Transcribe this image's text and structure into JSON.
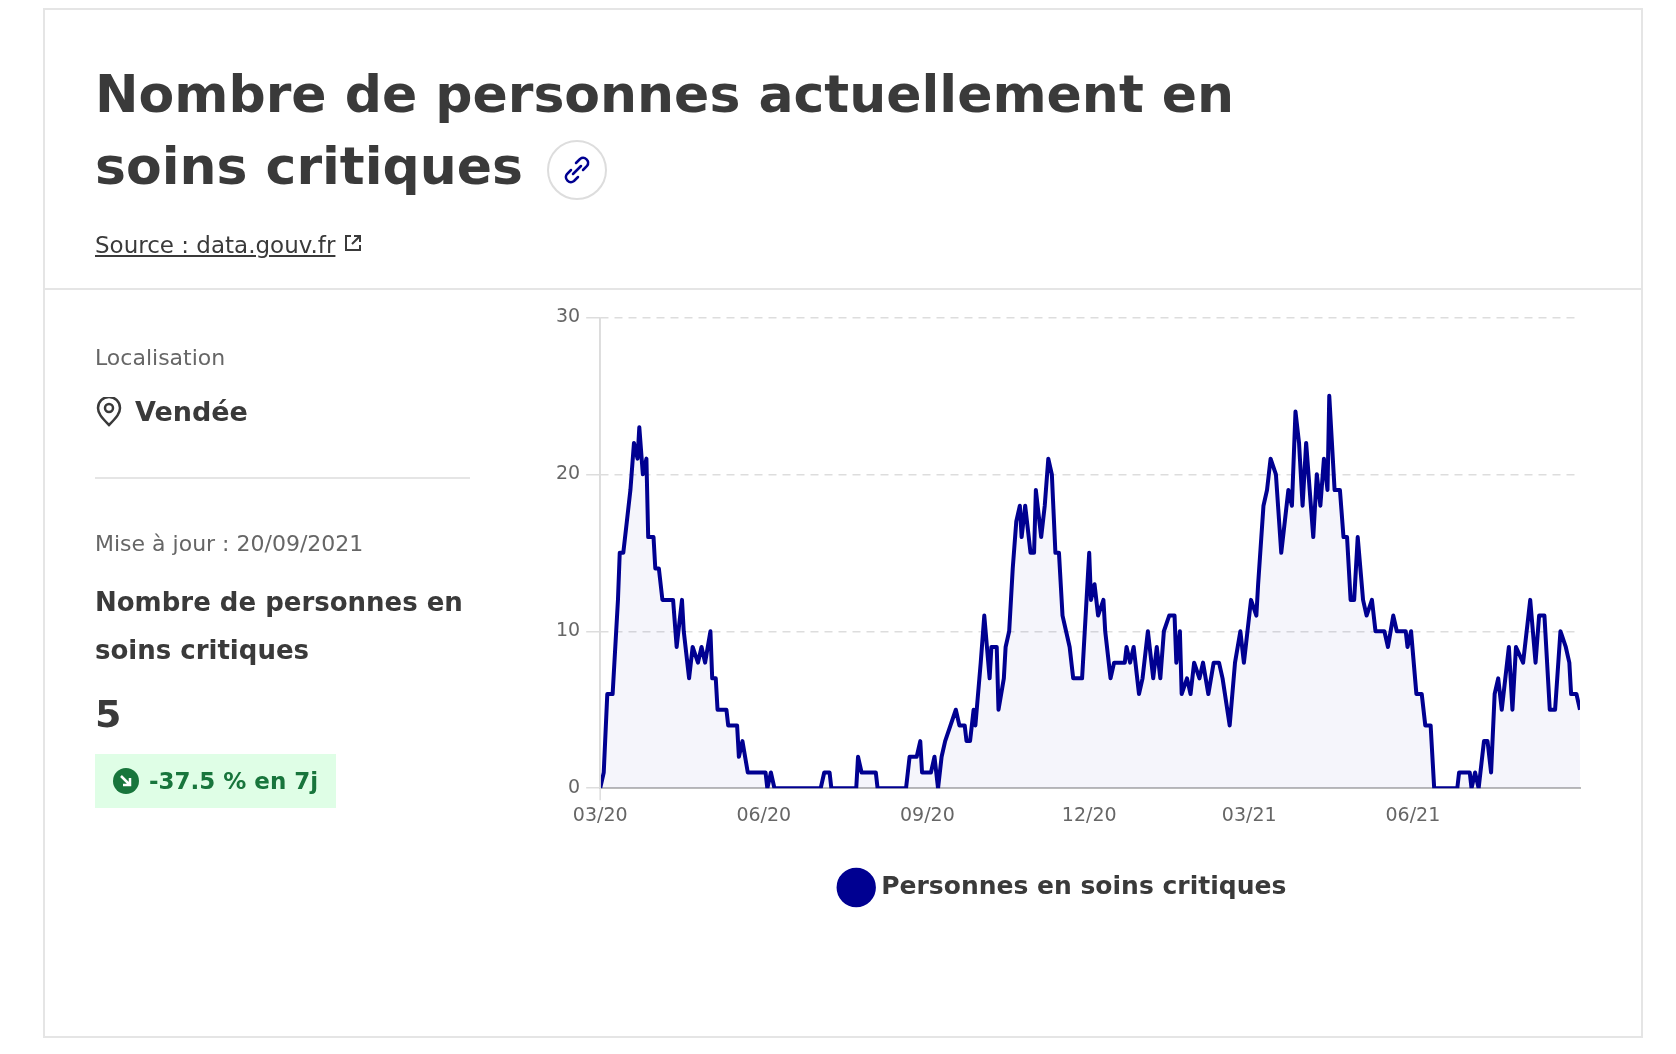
{
  "chart_data": {
    "type": "area",
    "title": "Nombre de personnes actuellement en soins critiques",
    "annotations": [
      "Source : data.gouv.fr",
      "Localisation",
      "Vendée",
      "Mise à jour : 20/09/2021",
      "Nombre de personnes en soins critiques",
      "5",
      "-37.5 % en 7j"
    ],
    "x": [
      "2020-03-18",
      "2020-03-20",
      "2020-03-22",
      "2020-03-25",
      "2020-03-28",
      "2020-03-29",
      "2020-03-31",
      "2020-04-02",
      "2020-04-04",
      "2020-04-06",
      "2020-04-08",
      "2020-04-09",
      "2020-04-11",
      "2020-04-13",
      "2020-04-14",
      "2020-04-17",
      "2020-04-18",
      "2020-04-20",
      "2020-04-22",
      "2020-04-28",
      "2020-04-30",
      "2020-05-03",
      "2020-05-04",
      "2020-05-07",
      "2020-05-09",
      "2020-05-12",
      "2020-05-14",
      "2020-05-16",
      "2020-05-19",
      "2020-05-20",
      "2020-05-22",
      "2020-05-23",
      "2020-05-28",
      "2020-05-29",
      "2020-06-03",
      "2020-06-04",
      "2020-06-06",
      "2020-06-09",
      "2020-06-19",
      "2020-06-20",
      "2020-06-22",
      "2020-06-24",
      "2020-07-20",
      "2020-07-22",
      "2020-07-25",
      "2020-07-26",
      "2020-08-09",
      "2020-08-10",
      "2020-08-12",
      "2020-08-20",
      "2020-08-21",
      "2020-09-06",
      "2020-09-08",
      "2020-09-12",
      "2020-09-14",
      "2020-09-15",
      "2020-09-20",
      "2020-09-22",
      "2020-09-24",
      "2020-09-26",
      "2020-09-28",
      "2020-10-01",
      "2020-10-04",
      "2020-10-06",
      "2020-10-09",
      "2020-10-10",
      "2020-10-12",
      "2020-10-14",
      "2020-10-15",
      "2020-10-18",
      "2020-10-20",
      "2020-10-23",
      "2020-10-24",
      "2020-10-27",
      "2020-10-28",
      "2020-10-31",
      "2020-11-01",
      "2020-11-03",
      "2020-11-05",
      "2020-11-07",
      "2020-11-09",
      "2020-11-10",
      "2020-11-12",
      "2020-11-15",
      "2020-11-17",
      "2020-11-18",
      "2020-11-21",
      "2020-11-23",
      "2020-11-25",
      "2020-11-27",
      "2020-11-29",
      "2020-12-01",
      "2020-12-03",
      "2020-12-05",
      "2020-12-07",
      "2020-12-09",
      "2020-12-14",
      "2020-12-18",
      "2020-12-19",
      "2020-12-21",
      "2020-12-23",
      "2020-12-26",
      "2020-12-27",
      "2020-12-30",
      "2021-01-01",
      "2021-01-07",
      "2021-01-08",
      "2021-01-10",
      "2021-01-12",
      "2021-01-15",
      "2021-01-17",
      "2021-01-20",
      "2021-01-23",
      "2021-01-25",
      "2021-01-27",
      "2021-01-29",
      "2021-02-01",
      "2021-02-04",
      "2021-02-05",
      "2021-02-07",
      "2021-02-08",
      "2021-02-11",
      "2021-02-13",
      "2021-02-15",
      "2021-02-18",
      "2021-02-20",
      "2021-02-23",
      "2021-02-26",
      "2021-03-01",
      "2021-03-03",
      "2021-03-07",
      "2021-03-10",
      "2021-03-13",
      "2021-03-15",
      "2021-03-19",
      "2021-03-22",
      "2021-03-23",
      "2021-03-26",
      "2021-03-28",
      "2021-03-30",
      "2021-04-02",
      "2021-04-05",
      "2021-04-07",
      "2021-04-09",
      "2021-04-11",
      "2021-04-13",
      "2021-04-15",
      "2021-04-17",
      "2021-04-19",
      "2021-04-21",
      "2021-04-23",
      "2021-04-25",
      "2021-04-27",
      "2021-04-29",
      "2021-05-01",
      "2021-05-02",
      "2021-05-05",
      "2021-05-08",
      "2021-05-10",
      "2021-05-12",
      "2021-05-14",
      "2021-05-16",
      "2021-05-18",
      "2021-05-21",
      "2021-05-23",
      "2021-05-26",
      "2021-05-28",
      "2021-06-02",
      "2021-06-04",
      "2021-06-07",
      "2021-06-09",
      "2021-06-14",
      "2021-06-15",
      "2021-06-17",
      "2021-06-20",
      "2021-06-23",
      "2021-06-25",
      "2021-06-28",
      "2021-06-30",
      "2021-07-13",
      "2021-07-14",
      "2021-07-20",
      "2021-07-21",
      "2021-07-23",
      "2021-07-25",
      "2021-07-28",
      "2021-07-30",
      "2021-08-01",
      "2021-08-03",
      "2021-08-05",
      "2021-08-07",
      "2021-08-11",
      "2021-08-13",
      "2021-08-15",
      "2021-08-19",
      "2021-08-23",
      "2021-08-26",
      "2021-08-28",
      "2021-08-31",
      "2021-09-03",
      "2021-09-06",
      "2021-09-09",
      "2021-09-12",
      "2021-09-14",
      "2021-09-15",
      "2021-09-18",
      "2021-09-20"
    ],
    "series": [
      {
        "name": "Personnes en soins critiques",
        "color": "#000091",
        "values": [
          0,
          1,
          6,
          6,
          12,
          15,
          15,
          17,
          19,
          22,
          21,
          23,
          20,
          21,
          16,
          16,
          14,
          14,
          12,
          12,
          9,
          12,
          10,
          7,
          9,
          8,
          9,
          8,
          10,
          7,
          7,
          5,
          5,
          4,
          4,
          2,
          3,
          1,
          1,
          0,
          1,
          0,
          0,
          1,
          1,
          0,
          0,
          2,
          1,
          1,
          0,
          0,
          2,
          2,
          3,
          1,
          1,
          2,
          0,
          2,
          3,
          4,
          5,
          4,
          4,
          3,
          3,
          5,
          4,
          8,
          11,
          7,
          9,
          9,
          5,
          7,
          9,
          10,
          14,
          17,
          18,
          16,
          18,
          15,
          15,
          19,
          16,
          18,
          21,
          20,
          15,
          15,
          11,
          10,
          9,
          7,
          7,
          15,
          12,
          13,
          11,
          12,
          10,
          7,
          8,
          8,
          9,
          8,
          9,
          6,
          7,
          10,
          7,
          9,
          7,
          10,
          11,
          11,
          8,
          10,
          6,
          7,
          6,
          8,
          7,
          8,
          6,
          8,
          8,
          7,
          4,
          8,
          10,
          8,
          12,
          11,
          13,
          18,
          19,
          21,
          20,
          15,
          17,
          19,
          18,
          24,
          22,
          18,
          22,
          19,
          16,
          20,
          18,
          21,
          19,
          25,
          19,
          19,
          16,
          16,
          12,
          12,
          16,
          12,
          11,
          12,
          10,
          10,
          9,
          11,
          10,
          10,
          9,
          10,
          6,
          6,
          4,
          4,
          0,
          0,
          1,
          1,
          0,
          1,
          0,
          3,
          3,
          1,
          6,
          7,
          5,
          9,
          5,
          9,
          8,
          12,
          8,
          11,
          11,
          5,
          5,
          10,
          9,
          8,
          6,
          6,
          5
        ]
      }
    ],
    "xlim": [
      "2020-03-18",
      "2021-09-20"
    ],
    "xticks": [
      {
        "value": "2020-03-18",
        "label": "03/20"
      },
      {
        "value": "2020-06-18",
        "label": "06/20"
      },
      {
        "value": "2020-09-18",
        "label": "09/20"
      },
      {
        "value": "2020-12-18",
        "label": "12/20"
      },
      {
        "value": "2021-03-18",
        "label": "03/21"
      },
      {
        "value": "2021-06-18",
        "label": "06/21"
      }
    ],
    "ylim": [
      0,
      30
    ],
    "yticks": [
      0,
      10,
      20,
      30
    ],
    "grid": "y",
    "legend": "bottom",
    "marker": "none"
  }
}
